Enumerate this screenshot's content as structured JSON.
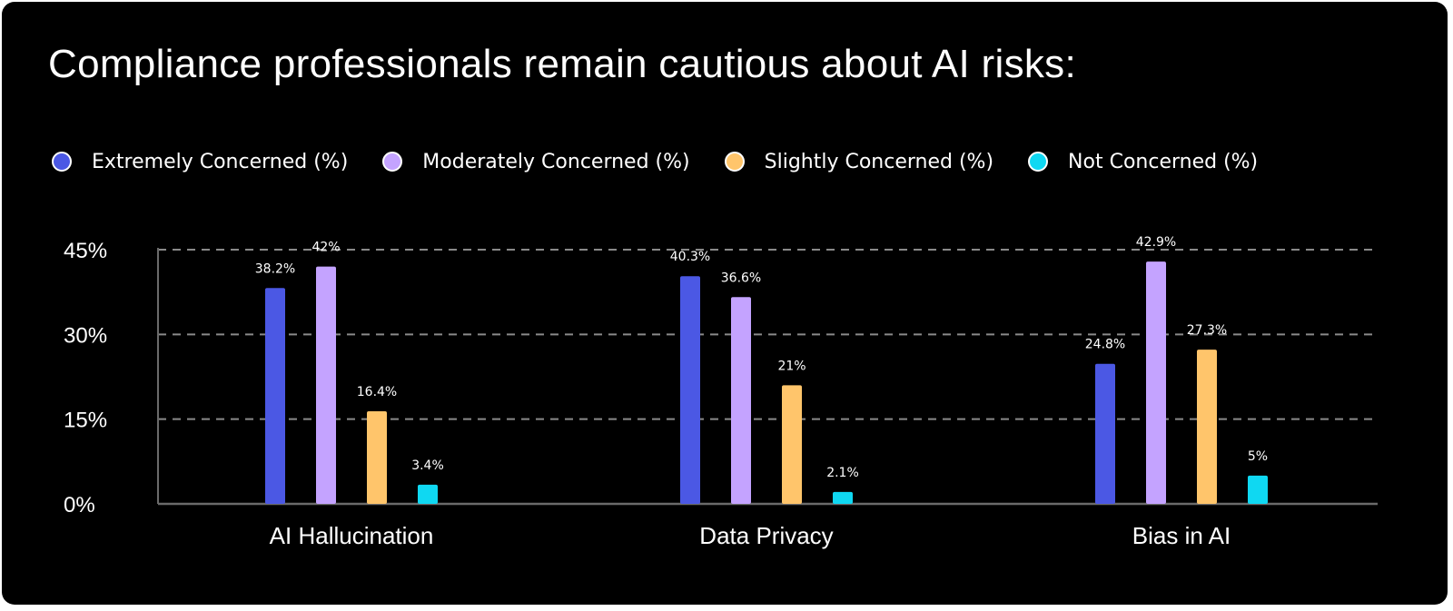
{
  "chart_data": {
    "type": "bar",
    "title": "Compliance professionals remain cautious about AI risks:",
    "categories": [
      "AI Hallucination",
      "Data Privacy",
      "Bias in AI"
    ],
    "series": [
      {
        "name": "Extremely Concerned (%)",
        "color": "#4B58E4",
        "values": [
          38.2,
          40.3,
          24.8
        ],
        "labels": [
          "38.2%",
          "40.3%",
          "24.8%"
        ]
      },
      {
        "name": "Moderately Concerned (%)",
        "color": "#C4A3FF",
        "values": [
          42,
          36.6,
          42.9
        ],
        "labels": [
          "42%",
          "36.6%",
          "42.9%"
        ]
      },
      {
        "name": "Slightly Concerned (%)",
        "color": "#FFC56B",
        "values": [
          16.4,
          21,
          27.3
        ],
        "labels": [
          "16.4%",
          "21%",
          "27.3%"
        ]
      },
      {
        "name": "Not Concerned (%)",
        "color": "#0FD8F2",
        "values": [
          3.4,
          2.1,
          5
        ],
        "labels": [
          "3.4%",
          "2.1%",
          "5%"
        ]
      }
    ],
    "yticks": [
      {
        "value": 0,
        "label": "0%"
      },
      {
        "value": 15,
        "label": "15%"
      },
      {
        "value": 30,
        "label": "30%"
      },
      {
        "value": 45,
        "label": "45%"
      }
    ],
    "ylim": [
      0,
      45
    ],
    "xlabel": "",
    "ylabel": "",
    "grid": true,
    "legend_position": "top-left"
  }
}
